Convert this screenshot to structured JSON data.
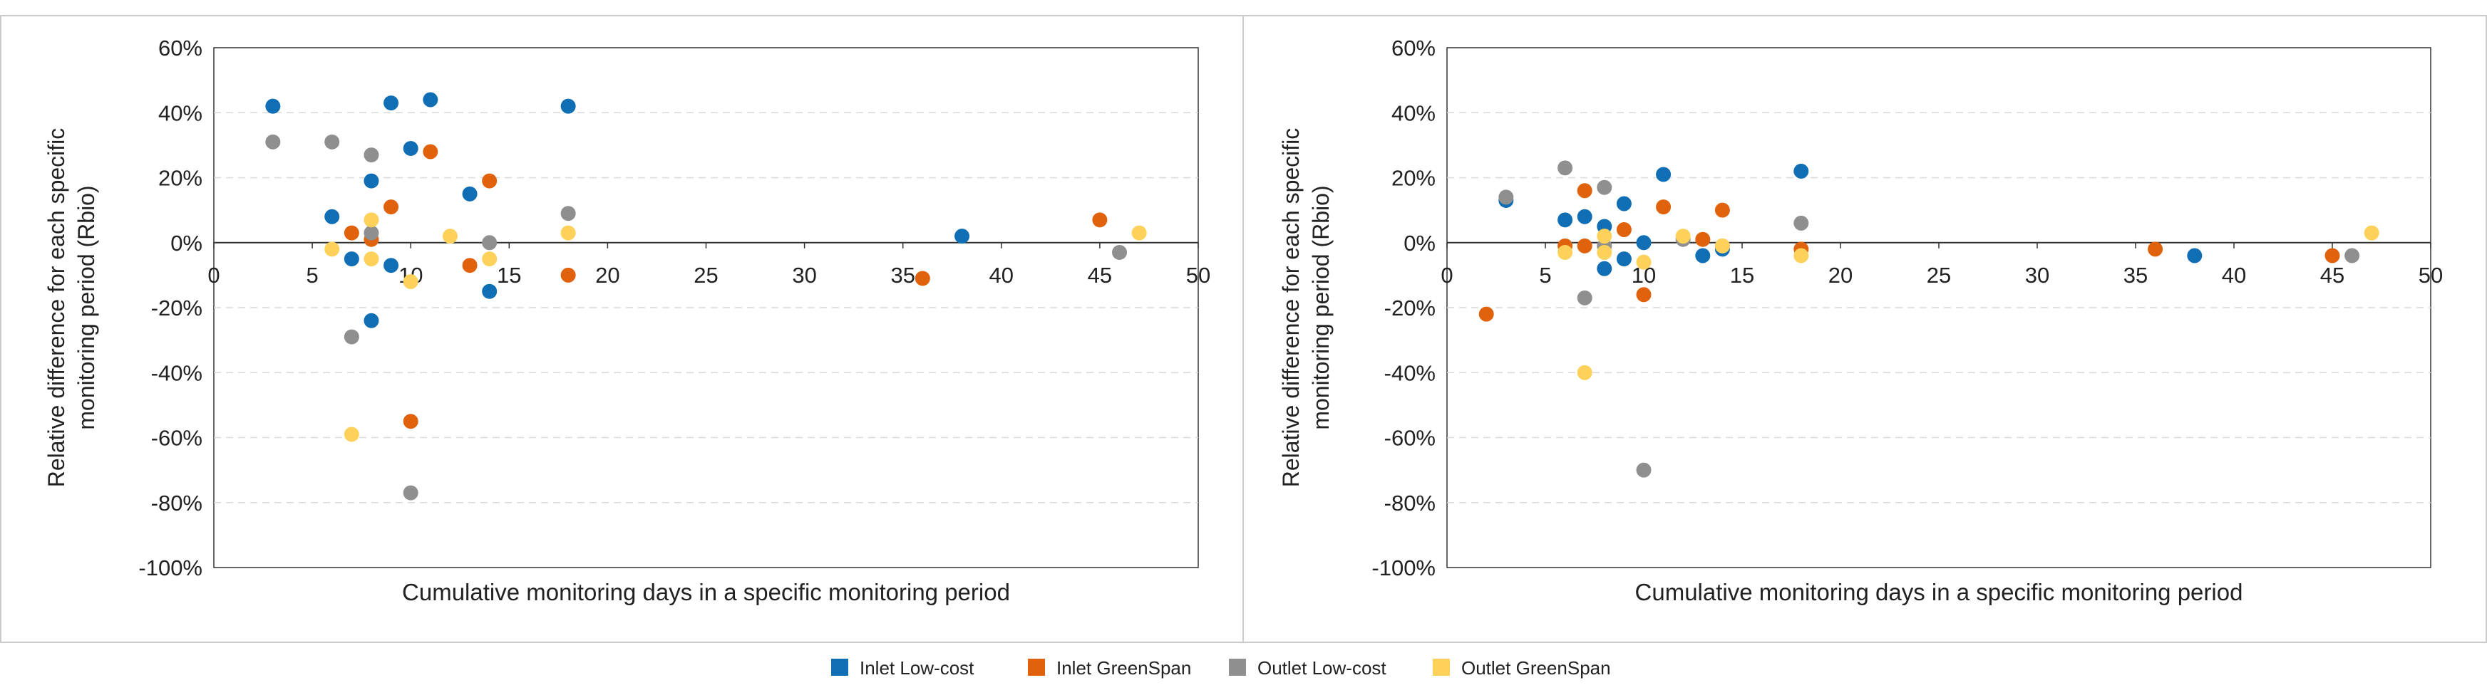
{
  "chart_data": [
    {
      "type": "scatter",
      "title": "",
      "xlabel": "Cumulative monitoring days in a specific monitoring period",
      "ylabel_lines": [
        "Relative difference for each specific",
        "monitoring period (Rbio)"
      ],
      "xlim": [
        0,
        50
      ],
      "ylim": [
        -100,
        60
      ],
      "x_ticks": [
        0,
        5,
        10,
        15,
        20,
        25,
        30,
        35,
        40,
        45,
        50
      ],
      "x_tick_labels": [
        "0",
        "5",
        "10",
        "15",
        "20",
        "25",
        "30",
        "35",
        "40",
        "45",
        "50"
      ],
      "y_ticks": [
        -100,
        -80,
        -60,
        -40,
        -20,
        0,
        20,
        40,
        60
      ],
      "y_tick_labels": [
        "-100%",
        "-80%",
        "-60%",
        "-40%",
        "-20%",
        "0%",
        "20%",
        "40%",
        "60%"
      ],
      "grid": "horizontal dashed",
      "series": [
        {
          "name": "Inlet Low-cost",
          "points": [
            [
              3,
              42
            ],
            [
              6,
              8
            ],
            [
              7,
              -5
            ],
            [
              8,
              19
            ],
            [
              8,
              -24
            ],
            [
              9,
              43
            ],
            [
              9,
              -7
            ],
            [
              10,
              29
            ],
            [
              11,
              44
            ],
            [
              13,
              15
            ],
            [
              14,
              -15
            ],
            [
              18,
              42
            ],
            [
              38,
              2
            ]
          ]
        },
        {
          "name": "Inlet GreenSpan",
          "points": [
            [
              7,
              3
            ],
            [
              8,
              1
            ],
            [
              9,
              11
            ],
            [
              10,
              -55
            ],
            [
              11,
              28
            ],
            [
              13,
              -7
            ],
            [
              14,
              19
            ],
            [
              18,
              -10
            ],
            [
              36,
              -11
            ],
            [
              45,
              7
            ]
          ]
        },
        {
          "name": "Outlet Low-cost",
          "points": [
            [
              3,
              31
            ],
            [
              6,
              31
            ],
            [
              7,
              -29
            ],
            [
              8,
              27
            ],
            [
              8,
              3
            ],
            [
              10,
              -77
            ],
            [
              14,
              0
            ],
            [
              18,
              9
            ],
            [
              46,
              -3
            ]
          ]
        },
        {
          "name": "Outlet GreenSpan",
          "points": [
            [
              6,
              -2
            ],
            [
              7,
              -59
            ],
            [
              8,
              7
            ],
            [
              8,
              -5
            ],
            [
              10,
              -12
            ],
            [
              12,
              2
            ],
            [
              14,
              -5
            ],
            [
              18,
              3
            ],
            [
              47,
              3
            ]
          ]
        }
      ]
    },
    {
      "type": "scatter",
      "title": "",
      "xlabel": "Cumulative monitoring days in a specific monitoring period",
      "ylabel_lines": [
        "Relative difference for each specific",
        "monitoring period (Rbio)"
      ],
      "xlim": [
        0,
        50
      ],
      "ylim": [
        -100,
        60
      ],
      "x_ticks": [
        0,
        5,
        10,
        15,
        20,
        25,
        30,
        35,
        40,
        45,
        50
      ],
      "x_tick_labels": [
        "0",
        "5",
        "10",
        "15",
        "20",
        "25",
        "30",
        "35",
        "40",
        "45",
        "50"
      ],
      "y_ticks": [
        -100,
        -80,
        -60,
        -40,
        -20,
        0,
        20,
        40,
        60
      ],
      "y_tick_labels": [
        "-100%",
        "-80%",
        "-60%",
        "-40%",
        "-20%",
        "0%",
        "20%",
        "40%",
        "60%"
      ],
      "grid": "horizontal dashed",
      "series": [
        {
          "name": "Inlet Low-cost",
          "points": [
            [
              3,
              13
            ],
            [
              6,
              7
            ],
            [
              7,
              8
            ],
            [
              8,
              5
            ],
            [
              8,
              -8
            ],
            [
              9,
              12
            ],
            [
              9,
              -5
            ],
            [
              10,
              0
            ],
            [
              11,
              21
            ],
            [
              13,
              -4
            ],
            [
              14,
              -2
            ],
            [
              18,
              22
            ],
            [
              38,
              -4
            ]
          ]
        },
        {
          "name": "Inlet GreenSpan",
          "points": [
            [
              2,
              -22
            ],
            [
              6,
              -1
            ],
            [
              7,
              16
            ],
            [
              7,
              -1
            ],
            [
              9,
              4
            ],
            [
              10,
              -16
            ],
            [
              11,
              11
            ],
            [
              13,
              1
            ],
            [
              14,
              10
            ],
            [
              18,
              -2
            ],
            [
              36,
              -2
            ],
            [
              45,
              -4
            ]
          ]
        },
        {
          "name": "Outlet Low-cost",
          "points": [
            [
              3,
              14
            ],
            [
              6,
              23
            ],
            [
              7,
              -17
            ],
            [
              8,
              17
            ],
            [
              8,
              -1
            ],
            [
              10,
              -70
            ],
            [
              12,
              1
            ],
            [
              14,
              -1
            ],
            [
              18,
              6
            ],
            [
              46,
              -4
            ]
          ]
        },
        {
          "name": "Outlet GreenSpan",
          "points": [
            [
              6,
              -3
            ],
            [
              7,
              -40
            ],
            [
              8,
              2
            ],
            [
              8,
              -3
            ],
            [
              10,
              -6
            ],
            [
              12,
              2
            ],
            [
              14,
              -1
            ],
            [
              18,
              -4
            ],
            [
              47,
              3
            ]
          ]
        }
      ]
    }
  ],
  "legend": {
    "placement": "bottom-center",
    "items": [
      {
        "label": "Inlet Low-cost",
        "color": "#0f6eb4"
      },
      {
        "label": "Inlet GreenSpan",
        "color": "#e0620d"
      },
      {
        "label": "Outlet Low-cost",
        "color": "#8f8f8f"
      },
      {
        "label": "Outlet GreenSpan",
        "color": "#fdd15a"
      }
    ]
  },
  "colors": {
    "axis": "#333333",
    "grid": "#d9d9d9",
    "panel_border": "#cccccc"
  }
}
